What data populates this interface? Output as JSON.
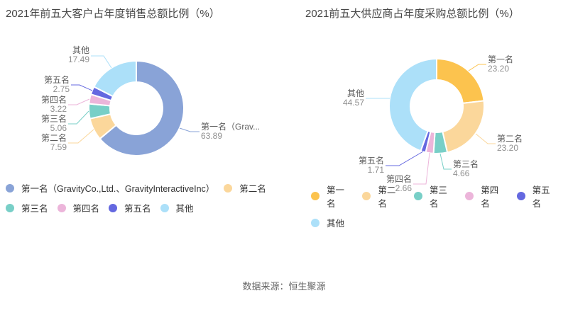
{
  "chart_data": [
    {
      "type": "pie",
      "subtype": "donut",
      "title": "2021年前五大客户占年度销售总额比例（%）",
      "unit": "%",
      "legend_position": "bottom",
      "slices": [
        {
          "name": "第一名（GravityCo.,Ltd.、GravityInteractiveInc）",
          "callout_name": "第一名（Grav...",
          "value": 63.89,
          "color": "#89A3D7"
        },
        {
          "name": "第二名",
          "value": 7.59,
          "color": "#FBD79B"
        },
        {
          "name": "第三名",
          "value": 5.06,
          "color": "#78CFC7"
        },
        {
          "name": "第四名",
          "value": 3.22,
          "color": "#ECB5DA"
        },
        {
          "name": "第五名",
          "value": 2.75,
          "color": "#6468E0"
        },
        {
          "name": "其他",
          "value": 17.49,
          "color": "#ACE0F9"
        }
      ]
    },
    {
      "type": "pie",
      "subtype": "donut",
      "title": "2021前五大供应商占年度采购总额比例（%）",
      "unit": "%",
      "legend_position": "bottom",
      "slices": [
        {
          "name": "第一名",
          "value": 23.2,
          "color": "#FCC34E"
        },
        {
          "name": "第二名",
          "value": 23.2,
          "color": "#FBD79B"
        },
        {
          "name": "第三名",
          "value": 4.66,
          "color": "#78CFC7"
        },
        {
          "name": "第四名",
          "value": 2.66,
          "color": "#ECB5DA"
        },
        {
          "name": "第五名",
          "value": 1.71,
          "color": "#6468E0"
        },
        {
          "name": "其他",
          "value": 44.57,
          "color": "#ACE0F9"
        }
      ]
    }
  ],
  "footer": {
    "source": "数据来源：恒生聚源"
  }
}
